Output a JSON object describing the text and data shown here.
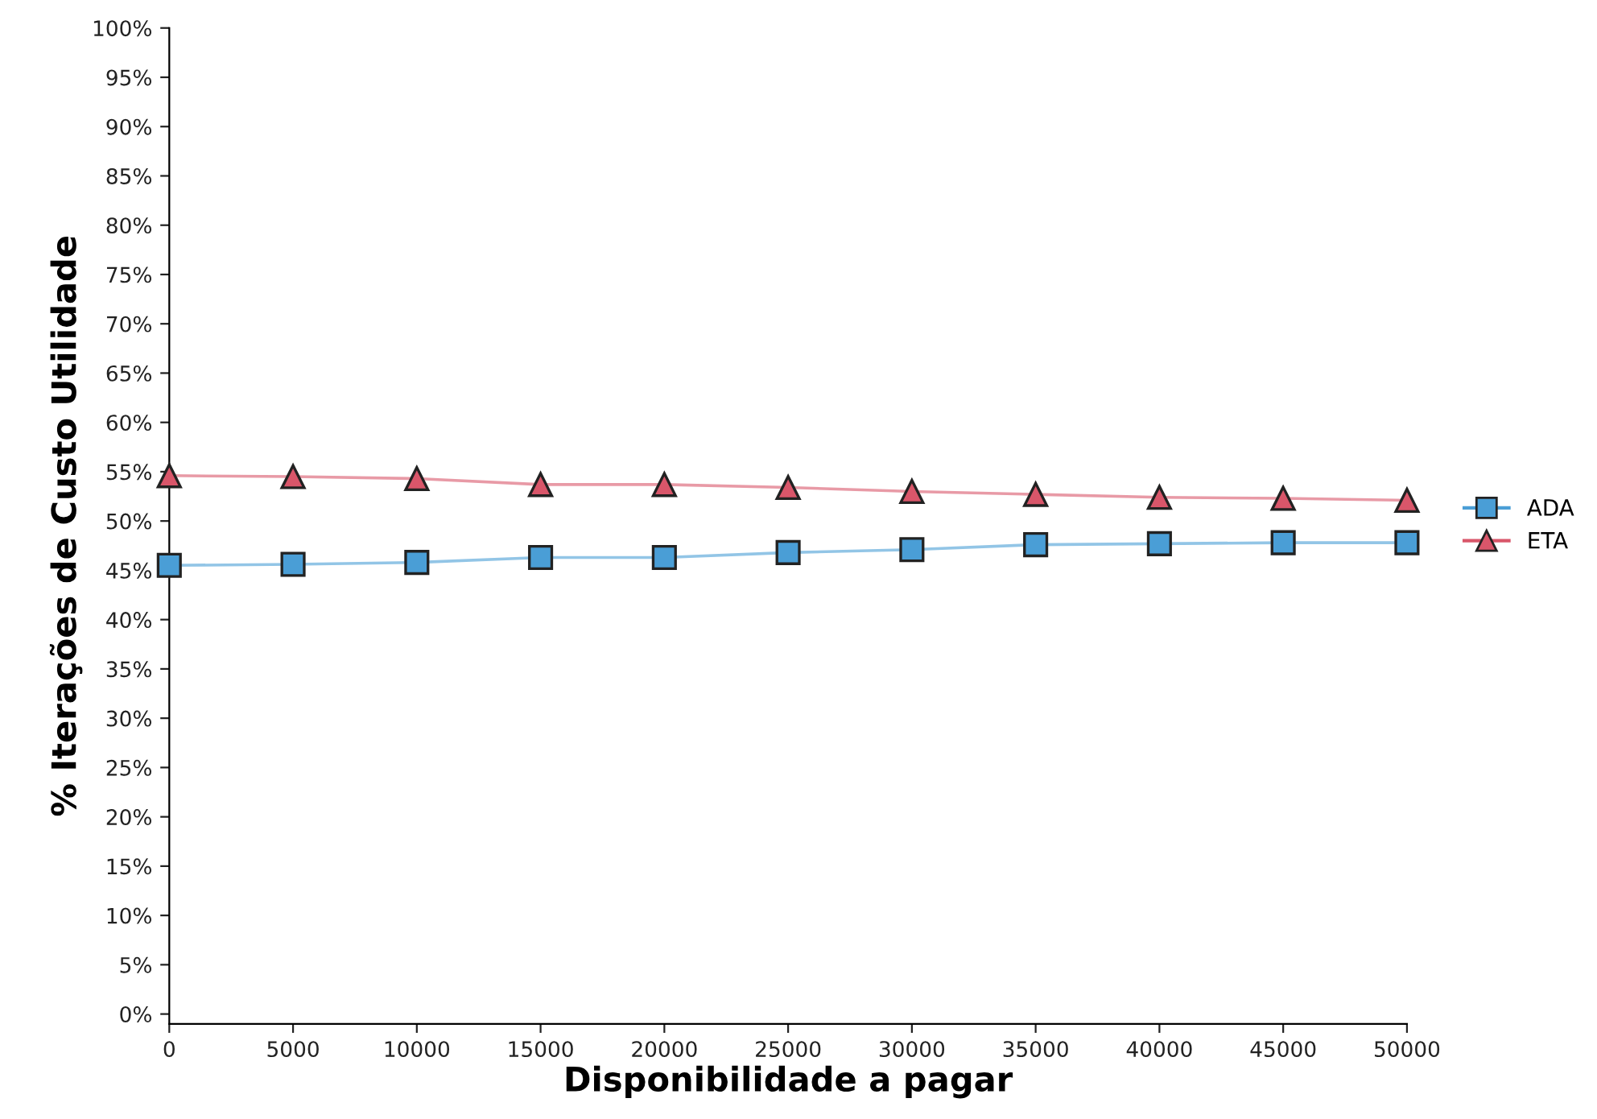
{
  "chart_data": {
    "type": "line",
    "xlabel": "Disponibilidade a pagar",
    "ylabel": "% Iterações de Custo Utilidade",
    "x": [
      0,
      5000,
      10000,
      15000,
      20000,
      25000,
      30000,
      35000,
      40000,
      45000,
      50000
    ],
    "series": [
      {
        "name": "ADA",
        "color": "#4a9ed6",
        "marker": "square",
        "values": [
          45.5,
          45.6,
          45.8,
          46.3,
          46.3,
          46.8,
          47.1,
          47.6,
          47.7,
          47.8,
          47.8
        ]
      },
      {
        "name": "ETA",
        "color": "#d9566a",
        "marker": "triangle",
        "values": [
          54.6,
          54.5,
          54.3,
          53.7,
          53.7,
          53.4,
          53.0,
          52.7,
          52.4,
          52.3,
          52.1
        ]
      }
    ],
    "xlim": [
      0,
      50000
    ],
    "xticks": [
      0,
      5000,
      10000,
      15000,
      20000,
      25000,
      30000,
      35000,
      40000,
      45000,
      50000
    ],
    "ylim": [
      -1,
      100
    ],
    "yticks": [
      {
        "value": 0,
        "label": "0%"
      },
      {
        "value": 5,
        "label": "5%"
      },
      {
        "value": 10,
        "label": "10%"
      },
      {
        "value": 15,
        "label": "15%"
      },
      {
        "value": 20,
        "label": "20%"
      },
      {
        "value": 25,
        "label": "25%"
      },
      {
        "value": 30,
        "label": "30%"
      },
      {
        "value": 35,
        "label": "35%"
      },
      {
        "value": 40,
        "label": "40%"
      },
      {
        "value": 45,
        "label": "45%"
      },
      {
        "value": 50,
        "label": "50%"
      },
      {
        "value": 55,
        "label": "55%"
      },
      {
        "value": 60,
        "label": "60%"
      },
      {
        "value": 65,
        "label": "65%"
      },
      {
        "value": 70,
        "label": "70%"
      },
      {
        "value": 75,
        "label": "75%"
      },
      {
        "value": 80,
        "label": "80%"
      },
      {
        "value": 85,
        "label": "85%"
      },
      {
        "value": 90,
        "label": "90%"
      },
      {
        "value": 95,
        "label": "95%"
      },
      {
        "value": 100,
        "label": "100%"
      }
    ],
    "grid": false,
    "legend": "right",
    "line_style": "solid"
  }
}
